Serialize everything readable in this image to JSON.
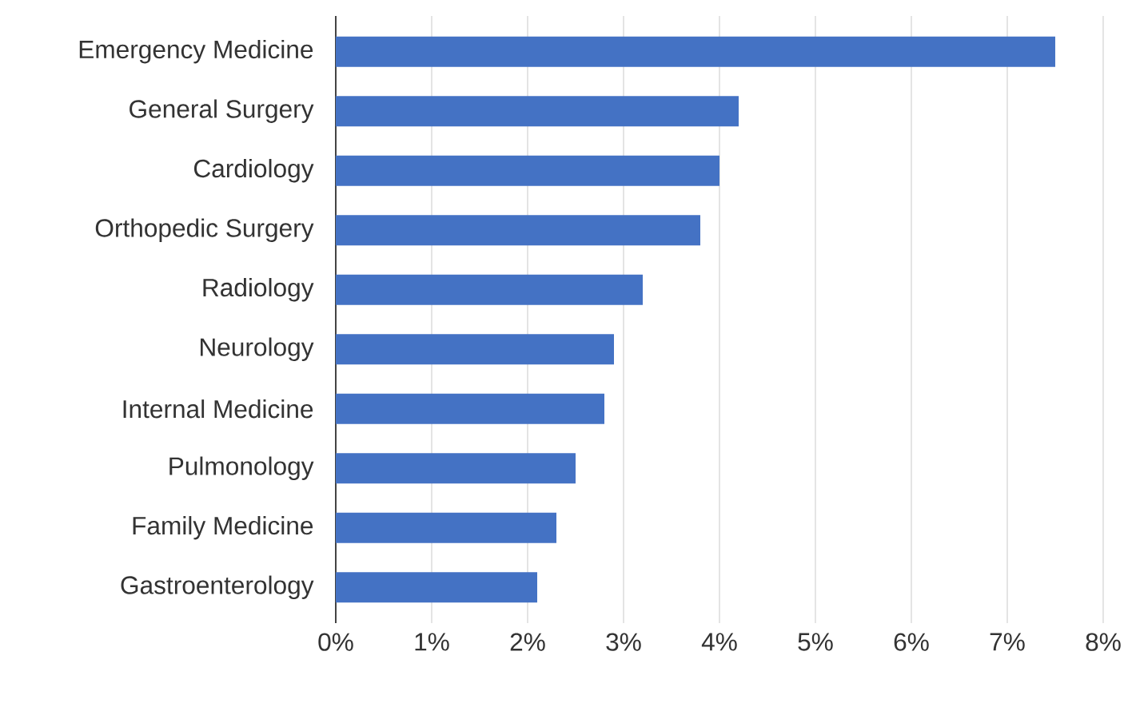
{
  "chart_data": {
    "type": "bar",
    "orientation": "horizontal",
    "categories": [
      "Emergency Medicine",
      "General Surgery",
      "Cardiology",
      "Orthopedic Surgery",
      "Radiology",
      "Neurology",
      "Internal Medicine",
      "Pulmonology",
      "Family Medicine",
      "Gastroenterology"
    ],
    "values": [
      7.5,
      4.2,
      4.0,
      3.8,
      3.2,
      2.9,
      2.8,
      2.5,
      2.3,
      2.1
    ],
    "color": "#4472c4",
    "xlim": [
      0,
      8
    ],
    "xticks": [
      {
        "value": 0,
        "label": "0%"
      },
      {
        "value": 1,
        "label": "1%"
      },
      {
        "value": 2,
        "label": "2%"
      },
      {
        "value": 3,
        "label": "3%"
      },
      {
        "value": 4,
        "label": "4%"
      },
      {
        "value": 5,
        "label": "5%"
      },
      {
        "value": 6,
        "label": "6%"
      },
      {
        "value": 7,
        "label": "7%"
      },
      {
        "value": 8,
        "label": "8%"
      }
    ],
    "grid": "x"
  }
}
